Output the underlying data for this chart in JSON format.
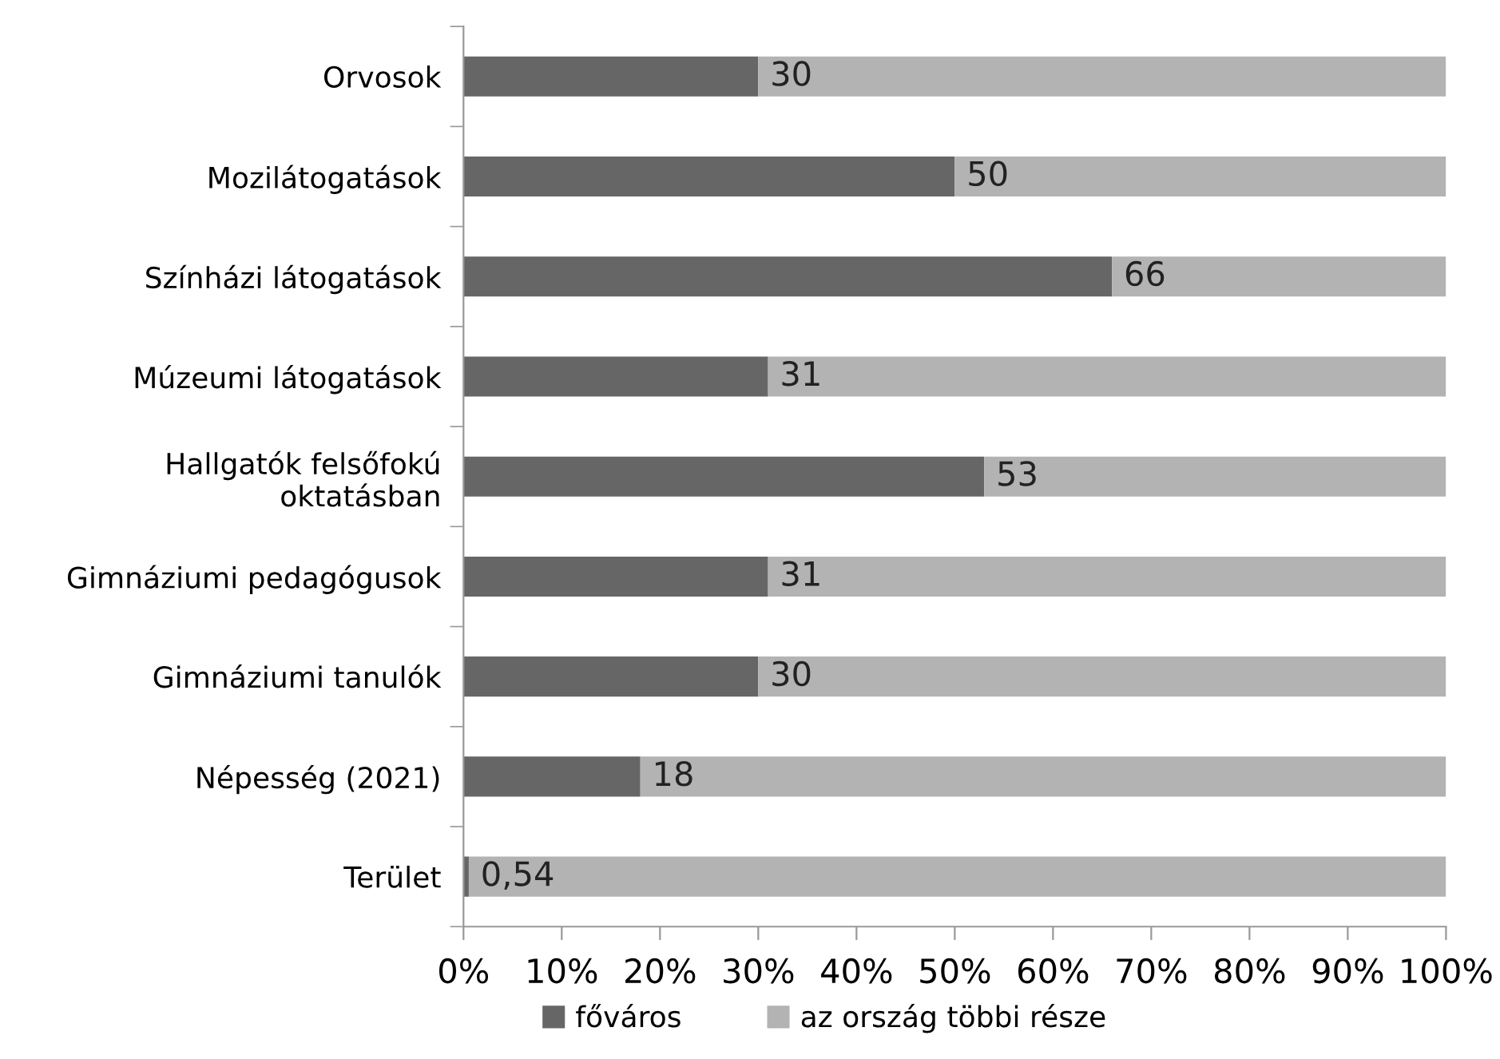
{
  "chart_data": {
    "type": "bar",
    "orientation": "horizontal",
    "stacked": true,
    "categories": [
      "Orvosok",
      "Mozilátogatások",
      "Színházi látogatások",
      "Múzeumi látogatások",
      "Hallgatók felsőfokú\noktatásban",
      "Gimnáziumi pedagógusok",
      "Gimnáziumi tanulók",
      "Népesség (2021)",
      "Terület"
    ],
    "series": [
      {
        "name": "főváros",
        "color": "#666666",
        "values": [
          30,
          50,
          66,
          31,
          53,
          31,
          30,
          18,
          0.54
        ],
        "value_labels": [
          "30",
          "50",
          "66",
          "31",
          "53",
          "31",
          "30",
          "18",
          "0,54"
        ]
      },
      {
        "name": "az ország többi része",
        "color": "#b3b3b3",
        "values": [
          70,
          50,
          34,
          69,
          47,
          69,
          70,
          82,
          99.46
        ]
      }
    ],
    "xlim": [
      0,
      100
    ],
    "xticks": [
      {
        "value": 0,
        "label": "0%"
      },
      {
        "value": 10,
        "label": "10%"
      },
      {
        "value": 20,
        "label": "20%"
      },
      {
        "value": 30,
        "label": "30%"
      },
      {
        "value": 40,
        "label": "40%"
      },
      {
        "value": 50,
        "label": "50%"
      },
      {
        "value": 60,
        "label": "60%"
      },
      {
        "value": 70,
        "label": "70%"
      },
      {
        "value": 80,
        "label": "80%"
      },
      {
        "value": 90,
        "label": "90%"
      },
      {
        "value": 100,
        "label": "100%"
      }
    ],
    "grid": false,
    "legend": "bottom"
  }
}
